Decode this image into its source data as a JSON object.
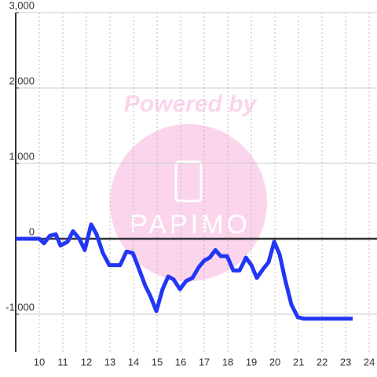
{
  "chart_data": {
    "type": "line",
    "watermark": {
      "line1": "Powered by",
      "line2": "PAPIMO"
    },
    "x": [
      9.0,
      10.0,
      10.2,
      10.45,
      10.7,
      10.9,
      11.2,
      11.43,
      11.7,
      11.93,
      12.2,
      12.43,
      12.7,
      12.97,
      13.43,
      13.7,
      13.97,
      14.23,
      14.5,
      14.7,
      14.97,
      15.23,
      15.47,
      15.7,
      15.97,
      16.23,
      16.5,
      16.77,
      17.0,
      17.23,
      17.47,
      17.7,
      17.97,
      18.23,
      18.5,
      18.77,
      19.0,
      19.23,
      19.5,
      19.73,
      19.97,
      20.2,
      20.43,
      20.7,
      20.97,
      21.23,
      23.3
    ],
    "series": [
      {
        "color": "#2236f5",
        "values": [
          0,
          0,
          -60,
          40,
          60,
          -90,
          -40,
          100,
          0,
          -150,
          190,
          60,
          -190,
          -350,
          -350,
          -170,
          -190,
          -400,
          -625,
          -750,
          -960,
          -670,
          -500,
          -540,
          -670,
          -560,
          -520,
          -375,
          -290,
          -250,
          -150,
          -230,
          -230,
          -420,
          -420,
          -250,
          -350,
          -520,
          -400,
          -310,
          -40,
          -210,
          -540,
          -875,
          -1040,
          -1060,
          -1060
        ]
      }
    ],
    "xlim": [
      9,
      24.33
    ],
    "xticks": [
      10,
      11,
      12,
      13,
      14,
      15,
      16,
      17,
      18,
      19,
      20,
      21,
      22,
      23,
      24
    ],
    "ylim": [
      -1500,
      3000
    ],
    "yticks": [
      {
        "value": 3000,
        "label": "3,000"
      },
      {
        "value": 2000,
        "label": "2,000"
      },
      {
        "value": 1000,
        "label": "1,000"
      },
      0,
      {
        "value": -1000,
        "label": "-1,000"
      }
    ],
    "grid": true
  }
}
